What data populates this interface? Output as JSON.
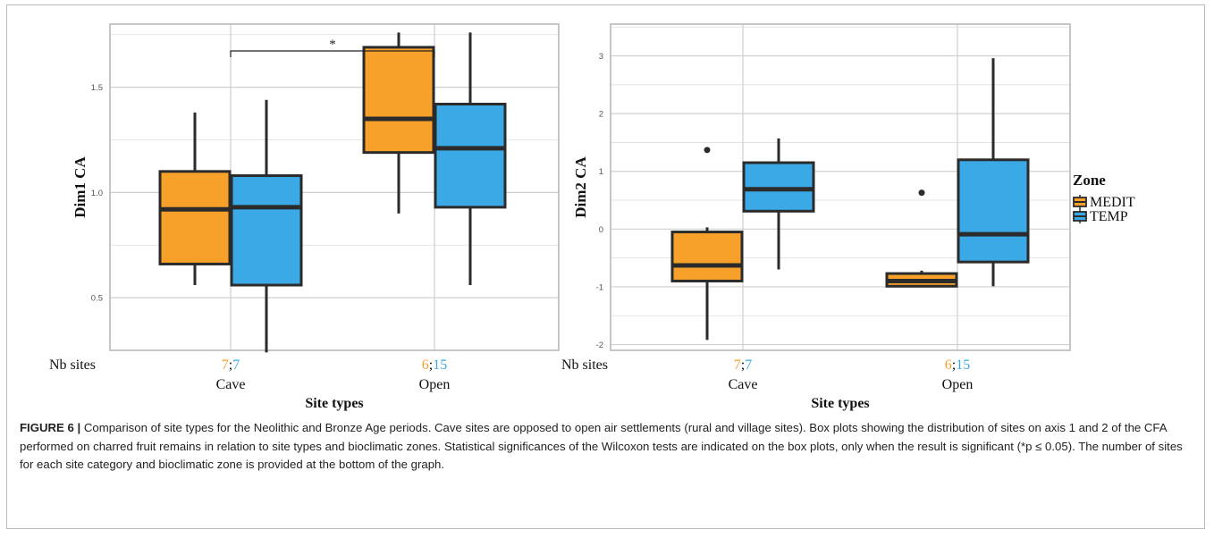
{
  "colors": {
    "medit": "#f7a12a",
    "temp": "#3aa9e6",
    "box_stroke": "#2b2b2b",
    "grid": "#dedede",
    "panel_border": "#b3b3b3"
  },
  "chart_data": [
    {
      "type": "box",
      "ylabel": "Dim1 CA",
      "xlabel": "Site types",
      "categories": [
        "Cave",
        "Open"
      ],
      "ylim": [
        0.25,
        1.8
      ],
      "yticks": [
        0.5,
        1.0,
        1.5
      ],
      "ytick_labels": [
        "0.5",
        "1.0",
        "1.5"
      ],
      "grid": true,
      "series": [
        {
          "name": "MEDIT",
          "boxes": [
            {
              "category": "Cave",
              "min": 0.56,
              "q1": 0.66,
              "median": 0.92,
              "q3": 1.1,
              "max": 1.38,
              "outliers": []
            },
            {
              "category": "Open",
              "min": 0.9,
              "q1": 1.19,
              "median": 1.35,
              "q3": 1.69,
              "max": 1.76,
              "outliers": []
            }
          ]
        },
        {
          "name": "TEMP",
          "boxes": [
            {
              "category": "Cave",
              "min": 0.24,
              "q1": 0.56,
              "median": 0.93,
              "q3": 1.08,
              "max": 1.44,
              "outliers": []
            },
            {
              "category": "Open",
              "min": 0.56,
              "q1": 0.93,
              "median": 1.21,
              "q3": 1.42,
              "max": 1.76,
              "outliers": []
            }
          ]
        }
      ],
      "annotations": [
        {
          "text": "*",
          "from": "Cave",
          "to": "Open"
        }
      ],
      "nb_sites": {
        "label": "Nb sites",
        "Cave": {
          "medit": "7",
          "sep": ";",
          "temp": "7"
        },
        "Open": {
          "medit": "6",
          "sep": ";",
          "temp": "15"
        }
      }
    },
    {
      "type": "box",
      "ylabel": "Dim2 CA",
      "xlabel": "Site types",
      "categories": [
        "Cave",
        "Open"
      ],
      "ylim": [
        -2.1,
        3.55
      ],
      "yticks": [
        -2,
        -1,
        0,
        1,
        2,
        3
      ],
      "ytick_labels": [
        "-2",
        "-1",
        "0",
        "1",
        "2",
        "3"
      ],
      "grid": true,
      "series": [
        {
          "name": "MEDIT",
          "boxes": [
            {
              "category": "Cave",
              "min": -1.92,
              "q1": -0.9,
              "median": -0.63,
              "q3": -0.05,
              "max": 0.03,
              "outliers": [
                1.37
              ]
            },
            {
              "category": "Open",
              "min": -1.0,
              "q1": -0.99,
              "median": -0.9,
              "q3": -0.77,
              "max": -0.72,
              "outliers": [
                0.63
              ]
            }
          ]
        },
        {
          "name": "TEMP",
          "boxes": [
            {
              "category": "Cave",
              "min": -0.7,
              "q1": 0.31,
              "median": 0.69,
              "q3": 1.15,
              "max": 1.57,
              "outliers": []
            },
            {
              "category": "Open",
              "min": -0.99,
              "q1": -0.57,
              "median": -0.09,
              "q3": 1.2,
              "max": 2.96,
              "outliers": []
            }
          ]
        }
      ],
      "nb_sites": {
        "label": "Nb sites",
        "Cave": {
          "medit": "7",
          "sep": ";",
          "temp": "7"
        },
        "Open": {
          "medit": "6",
          "sep": ";",
          "temp": "15"
        }
      }
    }
  ],
  "legend": {
    "title": "Zone",
    "placement": "right",
    "items": [
      {
        "name": "MEDIT",
        "color": "#f7a12a"
      },
      {
        "name": "TEMP",
        "color": "#3aa9e6"
      }
    ]
  },
  "caption": {
    "label": "FIGURE 6 |",
    "text": " Comparison of site types for the Neolithic and Bronze Age periods. Cave sites are opposed to open air settlements (rural and village sites). Box plots showing the distribution of sites on axis 1 and 2 of the CFA performed on charred fruit remains in relation to site types and bioclimatic zones. Statistical significances of the Wilcoxon tests are indicated on the box plots, only when the result is significant (*p ≤ 0.05). The number of sites for each site category and bioclimatic zone is provided at the bottom of the graph."
  }
}
